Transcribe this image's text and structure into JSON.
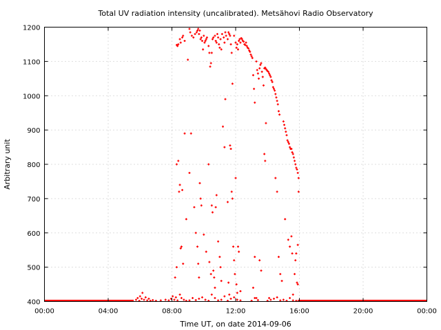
{
  "chart_data": {
    "type": "scatter",
    "title": "Total UV radiation intensity (uncalibrated). Metsähovi Radio Observatory",
    "xlabel": "Time UT, on date 2014-09-06",
    "ylabel": "Arbitrary unit",
    "xlim": [
      0,
      24
    ],
    "ylim": [
      400,
      1200
    ],
    "x_ticks": [
      {
        "value": 0,
        "label": "00:00"
      },
      {
        "value": 4,
        "label": "04:00"
      },
      {
        "value": 8,
        "label": "08:00"
      },
      {
        "value": 12,
        "label": "12:00"
      },
      {
        "value": 16,
        "label": "16:00"
      },
      {
        "value": 20,
        "label": "20:00"
      },
      {
        "value": 24,
        "label": "00:00"
      }
    ],
    "y_ticks": [
      400,
      500,
      600,
      700,
      800,
      900,
      1000,
      1100,
      1200
    ],
    "grid": true,
    "marker_color": "#ff0000",
    "baseline": {
      "x_start": 0,
      "x_end": 24,
      "y": 400,
      "gap": [
        5.6,
        15.9
      ]
    },
    "series": [
      {
        "points": [
          [
            5.75,
            405
          ],
          [
            5.85,
            410
          ],
          [
            5.95,
            402
          ],
          [
            6.0,
            415
          ],
          [
            6.1,
            408
          ],
          [
            6.15,
            425
          ],
          [
            6.25,
            405
          ],
          [
            6.35,
            412
          ],
          [
            6.45,
            403
          ],
          [
            6.55,
            408
          ],
          [
            6.65,
            402
          ],
          [
            6.8,
            404
          ],
          [
            7.0,
            402
          ],
          [
            7.3,
            403
          ],
          [
            7.6,
            405
          ],
          [
            7.8,
            403
          ],
          [
            7.95,
            408
          ],
          [
            8.05,
            415
          ],
          [
            8.15,
            405
          ],
          [
            8.25,
            412
          ],
          [
            8.35,
            403
          ],
          [
            8.5,
            420
          ],
          [
            8.6,
            410
          ],
          [
            8.75,
            405
          ],
          [
            8.9,
            402
          ],
          [
            9.1,
            403
          ],
          [
            9.3,
            410
          ],
          [
            9.5,
            404
          ],
          [
            9.7,
            408
          ],
          [
            9.9,
            412
          ],
          [
            10.1,
            405
          ],
          [
            10.3,
            402
          ],
          [
            10.5,
            420
          ],
          [
            10.7,
            410
          ],
          [
            10.9,
            403
          ],
          [
            11.1,
            405
          ],
          [
            11.3,
            415
          ],
          [
            11.5,
            402
          ],
          [
            11.7,
            408
          ],
          [
            11.9,
            412
          ],
          [
            12.1,
            405
          ],
          [
            12.3,
            403
          ],
          [
            13.0,
            402
          ],
          [
            13.2,
            410
          ],
          [
            13.4,
            404
          ],
          [
            14.0,
            402
          ],
          [
            14.2,
            405
          ],
          [
            14.4,
            408
          ],
          [
            14.6,
            412
          ],
          [
            14.8,
            403
          ],
          [
            15.0,
            405
          ],
          [
            15.2,
            402
          ],
          [
            15.4,
            410
          ],
          [
            15.6,
            403
          ],
          [
            15.8,
            402
          ],
          [
            8.3,
            800
          ],
          [
            8.4,
            810
          ],
          [
            8.45,
            720
          ],
          [
            8.5,
            740
          ],
          [
            8.55,
            555
          ],
          [
            8.6,
            560
          ],
          [
            8.65,
            725
          ],
          [
            8.7,
            510
          ],
          [
            8.8,
            890
          ],
          [
            8.9,
            640
          ],
          [
            8.2,
            470
          ],
          [
            8.3,
            500
          ],
          [
            8.3,
            1148
          ],
          [
            8.35,
            1145
          ],
          [
            8.4,
            1150
          ],
          [
            8.5,
            1165
          ],
          [
            8.55,
            1155
          ],
          [
            8.65,
            1170
          ],
          [
            8.7,
            1175
          ],
          [
            8.8,
            1160
          ],
          [
            9.0,
            1105
          ],
          [
            9.1,
            1195
          ],
          [
            9.15,
            1185
          ],
          [
            9.25,
            1175
          ],
          [
            9.35,
            1170
          ],
          [
            9.45,
            1180
          ],
          [
            9.55,
            1185
          ],
          [
            9.6,
            1190
          ],
          [
            9.65,
            1195
          ],
          [
            9.7,
            1180
          ],
          [
            9.75,
            1190
          ],
          [
            9.8,
            1165
          ],
          [
            9.85,
            1170
          ],
          [
            9.9,
            1160
          ],
          [
            9.95,
            1135
          ],
          [
            10.0,
            1175
          ],
          [
            10.05,
            1155
          ],
          [
            10.1,
            1160
          ],
          [
            10.15,
            1165
          ],
          [
            10.2,
            1170
          ],
          [
            10.3,
            1145
          ],
          [
            10.35,
            1125
          ],
          [
            10.4,
            1085
          ],
          [
            10.45,
            1095
          ],
          [
            10.5,
            1125
          ],
          [
            10.55,
            1165
          ],
          [
            10.6,
            1170
          ],
          [
            10.7,
            1175
          ],
          [
            10.75,
            1160
          ],
          [
            10.8,
            1155
          ],
          [
            10.85,
            1180
          ],
          [
            10.9,
            1170
          ],
          [
            10.95,
            1150
          ],
          [
            11.0,
            1140
          ],
          [
            11.05,
            1165
          ],
          [
            11.1,
            1135
          ],
          [
            11.15,
            1180
          ],
          [
            11.25,
            1170
          ],
          [
            11.3,
            1155
          ],
          [
            11.35,
            1185
          ],
          [
            11.4,
            1175
          ],
          [
            11.5,
            1165
          ],
          [
            11.55,
            1185
          ],
          [
            11.6,
            1180
          ],
          [
            11.65,
            1175
          ],
          [
            11.7,
            1150
          ],
          [
            11.75,
            1125
          ],
          [
            11.8,
            1035
          ],
          [
            11.9,
            1175
          ],
          [
            12.0,
            1155
          ],
          [
            12.05,
            1140
          ],
          [
            12.1,
            1150
          ],
          [
            12.15,
            1135
          ],
          [
            12.2,
            1160
          ],
          [
            12.25,
            1165
          ],
          [
            12.3,
            1155
          ],
          [
            12.35,
            1168
          ],
          [
            12.4,
            1165
          ],
          [
            12.45,
            1160
          ],
          [
            12.5,
            1158
          ],
          [
            12.55,
            1150
          ],
          [
            12.6,
            1148
          ],
          [
            12.65,
            1155
          ],
          [
            12.7,
            1145
          ],
          [
            12.75,
            1140
          ],
          [
            12.8,
            1138
          ],
          [
            12.85,
            1132
          ],
          [
            12.9,
            1128
          ],
          [
            12.95,
            1120
          ],
          [
            13.0,
            1115
          ],
          [
            13.05,
            1110
          ],
          [
            13.1,
            1060
          ],
          [
            13.15,
            1020
          ],
          [
            13.2,
            980
          ],
          [
            13.3,
            1100
          ],
          [
            13.35,
            1075
          ],
          [
            13.4,
            1065
          ],
          [
            13.45,
            1050
          ],
          [
            13.5,
            1080
          ],
          [
            13.55,
            1090
          ],
          [
            13.6,
            1095
          ],
          [
            13.65,
            1070
          ],
          [
            13.7,
            1055
          ],
          [
            13.75,
            1030
          ],
          [
            13.8,
            1080
          ],
          [
            13.85,
            1082
          ],
          [
            13.9,
            1078
          ],
          [
            13.95,
            1075
          ],
          [
            14.0,
            1072
          ],
          [
            14.05,
            1070
          ],
          [
            14.1,
            1065
          ],
          [
            14.15,
            1060
          ],
          [
            14.2,
            1055
          ],
          [
            14.25,
            1045
          ],
          [
            14.3,
            1040
          ],
          [
            14.35,
            1025
          ],
          [
            14.4,
            1020
          ],
          [
            14.45,
            1015
          ],
          [
            14.5,
            1005
          ],
          [
            14.55,
            995
          ],
          [
            14.6,
            985
          ],
          [
            14.65,
            975
          ],
          [
            14.7,
            955
          ],
          [
            14.75,
            945
          ],
          [
            15.0,
            925
          ],
          [
            15.05,
            915
          ],
          [
            15.1,
            905
          ],
          [
            15.15,
            895
          ],
          [
            15.2,
            885
          ],
          [
            15.25,
            870
          ],
          [
            15.3,
            865
          ],
          [
            15.35,
            860
          ],
          [
            15.4,
            850
          ],
          [
            15.45,
            845
          ],
          [
            15.5,
            845
          ],
          [
            15.55,
            835
          ],
          [
            15.6,
            830
          ],
          [
            15.65,
            820
          ],
          [
            15.7,
            810
          ],
          [
            15.75,
            800
          ],
          [
            15.8,
            790
          ],
          [
            15.85,
            785
          ],
          [
            15.9,
            775
          ],
          [
            15.95,
            760
          ],
          [
            9.1,
            775
          ],
          [
            9.2,
            890
          ],
          [
            9.4,
            675
          ],
          [
            9.5,
            600
          ],
          [
            9.6,
            560
          ],
          [
            9.65,
            510
          ],
          [
            9.7,
            470
          ],
          [
            9.75,
            745
          ],
          [
            9.8,
            700
          ],
          [
            9.85,
            680
          ],
          [
            10.0,
            595
          ],
          [
            10.15,
            545
          ],
          [
            10.3,
            800
          ],
          [
            10.35,
            515
          ],
          [
            10.45,
            480
          ],
          [
            10.5,
            680
          ],
          [
            10.55,
            660
          ],
          [
            10.6,
            490
          ],
          [
            10.65,
            470
          ],
          [
            10.7,
            440
          ],
          [
            10.75,
            675
          ],
          [
            10.8,
            710
          ],
          [
            10.9,
            575
          ],
          [
            11.0,
            530
          ],
          [
            11.05,
            500
          ],
          [
            11.1,
            460
          ],
          [
            11.2,
            910
          ],
          [
            11.3,
            850
          ],
          [
            11.35,
            990
          ],
          [
            11.5,
            690
          ],
          [
            11.55,
            455
          ],
          [
            11.6,
            420
          ],
          [
            11.65,
            855
          ],
          [
            11.7,
            845
          ],
          [
            11.75,
            720
          ],
          [
            11.8,
            700
          ],
          [
            11.85,
            560
          ],
          [
            11.9,
            520
          ],
          [
            11.95,
            480
          ],
          [
            12.0,
            760
          ],
          [
            12.05,
            450
          ],
          [
            12.1,
            425
          ],
          [
            12.15,
            560
          ],
          [
            12.2,
            545
          ],
          [
            12.3,
            430
          ],
          [
            13.1,
            440
          ],
          [
            13.2,
            530
          ],
          [
            13.3,
            410
          ],
          [
            13.5,
            520
          ],
          [
            13.6,
            490
          ],
          [
            13.8,
            830
          ],
          [
            13.85,
            810
          ],
          [
            13.9,
            920
          ],
          [
            14.1,
            410
          ],
          [
            14.5,
            760
          ],
          [
            14.6,
            720
          ],
          [
            14.7,
            530
          ],
          [
            14.8,
            480
          ],
          [
            14.9,
            460
          ],
          [
            15.1,
            640
          ],
          [
            15.3,
            580
          ],
          [
            15.4,
            560
          ],
          [
            15.5,
            590
          ],
          [
            15.55,
            540
          ],
          [
            15.6,
            420
          ],
          [
            15.7,
            480
          ],
          [
            15.75,
            520
          ],
          [
            15.8,
            540
          ],
          [
            15.85,
            455
          ],
          [
            15.9,
            450
          ],
          [
            15.95,
            720
          ],
          [
            15.9,
            565
          ]
        ]
      }
    ]
  }
}
